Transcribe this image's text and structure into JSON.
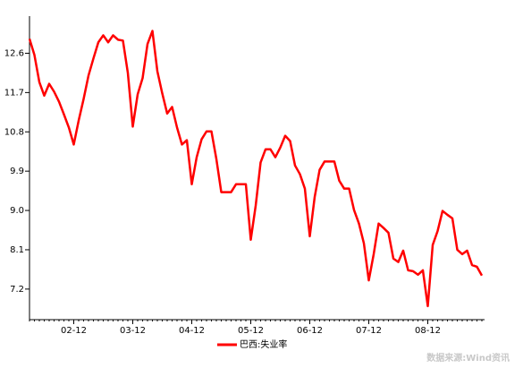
{
  "chart_data": {
    "type": "line",
    "categories": [
      null,
      null,
      null,
      null,
      null,
      null,
      null,
      null,
      null,
      "02-12",
      null,
      null,
      null,
      null,
      null,
      null,
      null,
      null,
      null,
      null,
      null,
      "03-12",
      null,
      null,
      null,
      null,
      null,
      null,
      null,
      null,
      null,
      null,
      null,
      "04-12",
      null,
      null,
      null,
      null,
      null,
      null,
      null,
      null,
      null,
      null,
      null,
      "05-12",
      null,
      null,
      null,
      null,
      null,
      null,
      null,
      null,
      null,
      null,
      null,
      "06-12",
      null,
      null,
      null,
      null,
      null,
      null,
      null,
      null,
      null,
      null,
      null,
      "07-12",
      null,
      null,
      null,
      null,
      null,
      null,
      null,
      null,
      null,
      null,
      null,
      "08-12",
      null,
      null,
      null,
      null,
      null,
      null,
      null,
      null,
      null,
      null,
      null
    ],
    "series": [
      {
        "name": "巴西:失业率",
        "color": "#ff0000",
        "values": [
          12.93,
          12.56,
          11.94,
          11.63,
          11.9,
          11.72,
          11.49,
          11.2,
          10.9,
          10.51,
          11.06,
          11.55,
          12.09,
          12.48,
          12.85,
          13.01,
          12.85,
          13.01,
          12.91,
          12.89,
          12.15,
          10.92,
          11.66,
          12.03,
          12.81,
          13.11,
          12.19,
          11.68,
          11.22,
          11.37,
          10.9,
          10.51,
          10.61,
          9.6,
          10.22,
          10.63,
          10.81,
          10.81,
          10.18,
          9.42,
          9.42,
          9.42,
          9.6,
          9.6,
          9.6,
          8.33,
          9.11,
          10.1,
          10.4,
          10.4,
          10.22,
          10.44,
          10.71,
          10.59,
          10.03,
          9.83,
          9.5,
          8.41,
          9.31,
          9.93,
          10.12,
          10.12,
          10.12,
          9.68,
          9.5,
          9.5,
          9.01,
          8.7,
          8.25,
          7.4,
          8.0,
          8.7,
          8.6,
          8.49,
          7.9,
          7.82,
          8.08,
          7.63,
          7.61,
          7.53,
          7.63,
          6.81,
          8.21,
          8.53,
          8.99,
          8.9,
          8.82,
          8.1,
          8.0,
          8.08,
          7.75,
          7.71,
          7.51
        ]
      }
    ],
    "ylim": [
      6.5,
      13.45
    ],
    "yticks": [
      {
        "value": 7.2,
        "label": "7.2"
      },
      8.1,
      {
        "value": 9,
        "label": "9.0"
      },
      9.9,
      10.8,
      11.7,
      12.6
    ],
    "source": "数据来源:Wind资讯"
  }
}
